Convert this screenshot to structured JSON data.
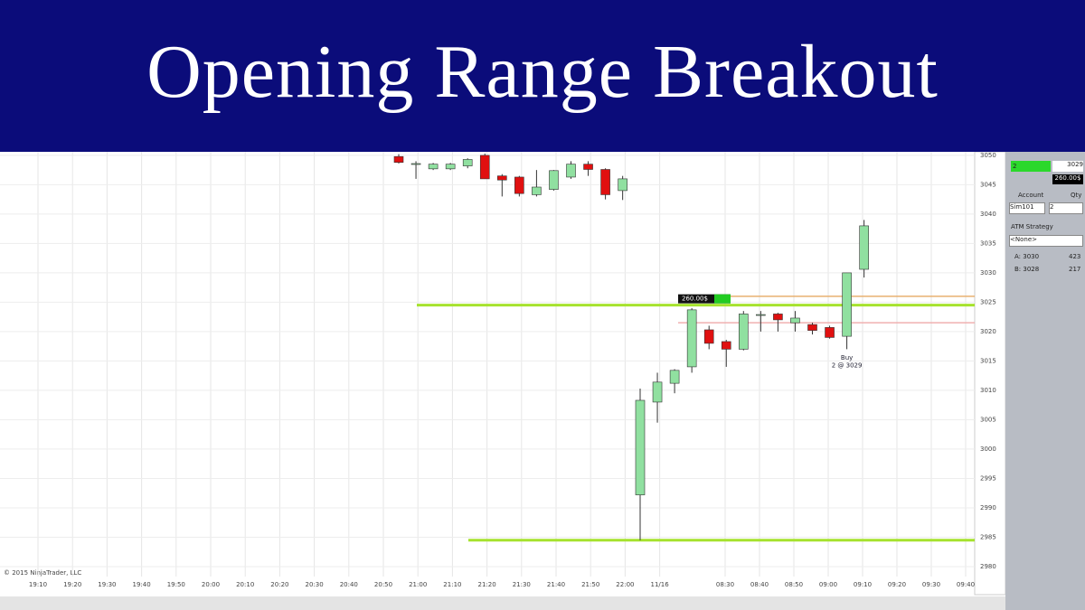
{
  "header": {
    "title": "Opening Range Breakout"
  },
  "chart": {
    "ylim": [
      2978.3,
      3050.6
    ],
    "price_ticks": [
      3050,
      3045,
      3040,
      3035,
      3030,
      3025,
      3020,
      3015,
      3010,
      3005,
      3000,
      2995,
      2990,
      2985,
      2980
    ],
    "time_labels": [
      "19:10",
      "19:20",
      "19:30",
      "19:40",
      "19:50",
      "20:00",
      "20:10",
      "20:20",
      "20:30",
      "20:40",
      "20:50",
      "21:00",
      "21:10",
      "21:20",
      "21:30",
      "21:40",
      "21:50",
      "22:00",
      "11/16",
      "08:30",
      "08:40",
      "08:50",
      "09:00",
      "09:10",
      "09:20",
      "09:30",
      "09:40"
    ],
    "up_color": "#90e0a0",
    "down_color": "#e01010",
    "sessions": [
      {
        "candles": [
          {
            "open": 3049.8,
            "high": 3050.2,
            "low": 3048.6,
            "close": 3048.8
          },
          {
            "open": 3048.5,
            "high": 3049,
            "low": 3046,
            "close": 3048.6
          },
          {
            "open": 3047.7,
            "high": 3048.7,
            "low": 3047.5,
            "close": 3048.5
          },
          {
            "open": 3047.7,
            "high": 3048.7,
            "low": 3047.5,
            "close": 3048.5
          },
          {
            "open": 3048.2,
            "high": 3049.5,
            "low": 3047.8,
            "close": 3049.3
          },
          {
            "open": 3050,
            "high": 3050.3,
            "low": 3046,
            "close": 3046
          },
          {
            "open": 3046.5,
            "high": 3046.8,
            "low": 3043,
            "close": 3045.8
          },
          {
            "open": 3046.3,
            "high": 3046.5,
            "low": 3043,
            "close": 3043.5
          },
          {
            "open": 3043.3,
            "high": 3047.5,
            "low": 3043,
            "close": 3044.6
          },
          {
            "open": 3044.2,
            "high": 3047.5,
            "low": 3044,
            "close": 3047.4
          },
          {
            "open": 3046.3,
            "high": 3049,
            "low": 3046,
            "close": 3048.5
          },
          {
            "open": 3048.5,
            "high": 3049,
            "low": 3046.5,
            "close": 3047.6
          },
          {
            "open": 3047.6,
            "high": 3047.8,
            "low": 3042.5,
            "close": 3043.3
          },
          {
            "open": 3044,
            "high": 3046.5,
            "low": 3042.4,
            "close": 3046
          }
        ]
      },
      {
        "candles": [
          {
            "open": 2992.2,
            "high": 3010.3,
            "low": 2984.5,
            "close": 3008.3
          },
          {
            "open": 3008,
            "high": 3013,
            "low": 3004.5,
            "close": 3011.4
          },
          {
            "open": 3011.2,
            "high": 3013.6,
            "low": 3009.5,
            "close": 3013.4
          },
          {
            "open": 3014,
            "high": 3024,
            "low": 3013,
            "close": 3023.7
          },
          {
            "open": 3020.3,
            "high": 3021,
            "low": 3017,
            "close": 3018
          },
          {
            "open": 3018.3,
            "high": 3018.6,
            "low": 3014,
            "close": 3017
          },
          {
            "open": 3017,
            "high": 3023.5,
            "low": 3016.8,
            "close": 3023
          },
          {
            "open": 3022.8,
            "high": 3023.5,
            "low": 3020,
            "close": 3022.9
          },
          {
            "open": 3023,
            "high": 3023.2,
            "low": 3020,
            "close": 3022
          },
          {
            "open": 3021.5,
            "high": 3023.5,
            "low": 3020,
            "close": 3022.3
          },
          {
            "open": 3021.2,
            "high": 3021.5,
            "low": 3019.5,
            "close": 3020.2
          },
          {
            "open": 3020.7,
            "high": 3021,
            "low": 3018.8,
            "close": 3019
          },
          {
            "open": 3019.2,
            "high": 3030,
            "low": 3017,
            "close": 3030
          },
          {
            "open": 3030.6,
            "high": 3039,
            "low": 3029.2,
            "close": 3038
          }
        ]
      }
    ],
    "levels": [
      {
        "price": 3024.5,
        "color": "#a6e22e"
      },
      {
        "price": 2984.5,
        "color": "#a6e22e"
      },
      {
        "price": 3026,
        "color": "#e8b070"
      },
      {
        "price": 3021.5,
        "color": "#f0b0b0"
      }
    ],
    "pnl_tag": "260.00$",
    "fill_label": "Buy",
    "fill_detail": "2 @ 3029",
    "copyright": "© 2015 NinjaTrader, LLC"
  },
  "panel": {
    "qty": "2",
    "price": "3029",
    "pnl": "260.00$",
    "account_label": "Account",
    "qty_label": "Qty",
    "account": "Sim101",
    "qty_value": "2",
    "atm_label": "ATM Strategy",
    "atm_value": "<None>",
    "ask": "A: 3030",
    "ask_size": "423",
    "bid": "B: 3028",
    "bid_size": "217"
  }
}
